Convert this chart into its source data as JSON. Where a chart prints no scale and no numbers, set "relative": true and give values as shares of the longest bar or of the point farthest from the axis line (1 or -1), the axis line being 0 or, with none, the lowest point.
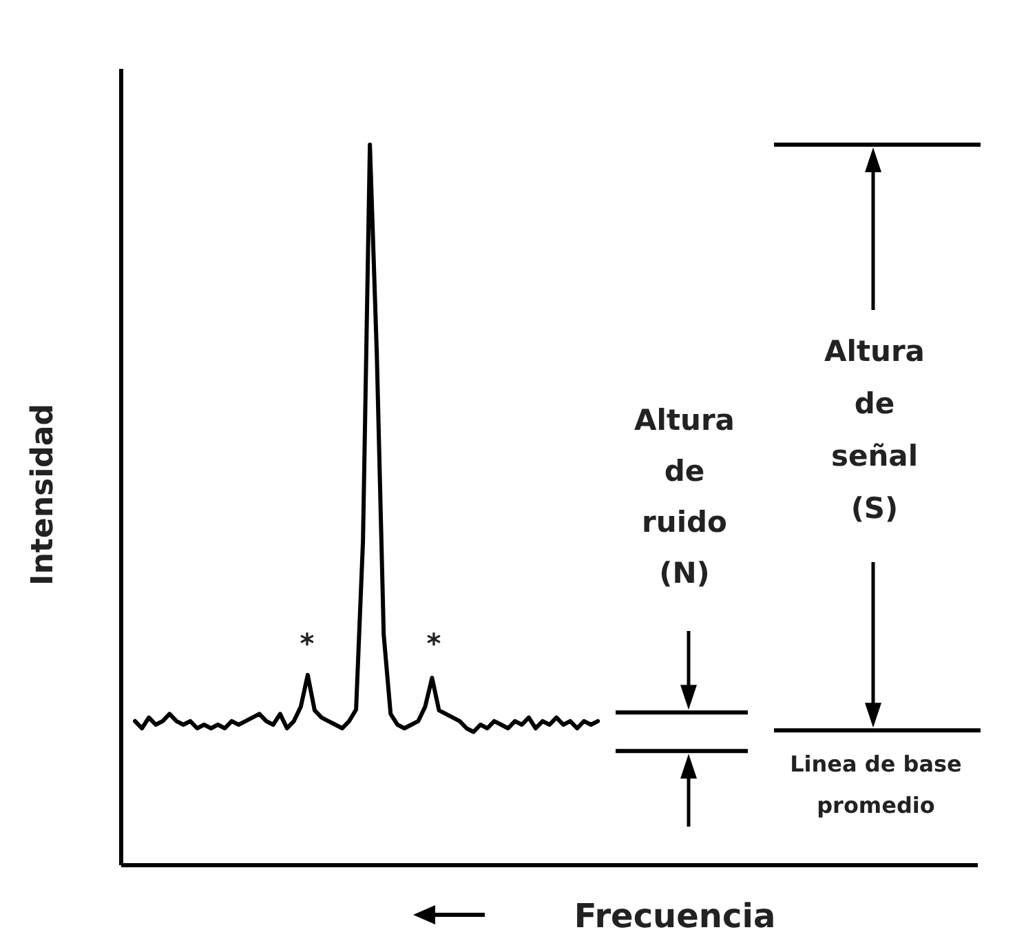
{
  "chart_data": {
    "type": "line",
    "relative": true,
    "xlabel": "Frecuencia",
    "ylabel": "Intensidad",
    "categories": [
      null,
      null,
      null,
      null,
      null,
      null,
      null,
      null,
      null,
      null,
      null,
      null,
      null,
      null,
      null,
      null,
      null,
      null,
      null,
      null,
      null,
      null,
      null,
      null,
      null,
      null,
      null,
      null,
      null,
      null,
      null,
      null,
      null,
      null,
      null,
      null,
      null,
      null,
      null,
      null,
      null,
      null,
      null,
      null,
      null,
      null,
      null,
      null,
      null,
      null,
      null,
      null,
      null,
      null,
      null,
      null,
      null,
      null,
      null,
      null,
      null,
      null,
      null,
      null,
      null,
      null,
      null,
      null,
      null,
      null,
      null,
      null,
      null,
      null,
      null,
      null,
      null,
      null,
      null,
      null,
      null,
      null,
      null,
      null,
      null,
      null,
      null,
      null,
      null,
      null,
      null,
      null,
      null,
      null,
      null,
      null,
      null,
      null,
      null,
      null,
      null,
      null,
      null,
      null,
      null,
      null,
      null,
      null,
      null,
      null,
      null,
      null,
      null,
      null,
      null,
      null,
      null,
      null,
      null,
      null,
      null,
      null,
      null,
      null,
      null
    ],
    "series": [
      {
        "color": "#000000",
        "values": [
          null,
          null,
          0.2,
          0.19,
          0.205,
          0.195,
          0.2,
          0.21,
          0.2,
          0.195,
          0.2,
          0.19,
          0.195,
          0.19,
          0.195,
          0.19,
          0.2,
          0.195,
          0.2,
          0.205,
          0.21,
          0.2,
          0.195,
          0.21,
          0.19,
          0.2,
          0.22,
          0.264,
          0.215,
          0.205,
          0.2,
          0.195,
          0.19,
          0.2,
          0.216,
          0.45,
          1,
          0.71,
          0.32,
          0.21,
          0.195,
          0.19,
          0.195,
          0.2,
          0.22,
          0.26,
          0.215,
          0.21,
          0.205,
          0.2,
          0.19,
          0.185,
          0.195,
          0.19,
          0.2,
          0.195,
          0.19,
          0.2,
          0.195,
          0.205,
          0.19,
          0.2,
          0.195,
          0.205,
          0.195,
          0.2,
          0.19,
          0.2,
          0.195,
          0.2,
          null,
          null,
          null,
          null,
          null,
          null,
          null,
          null,
          null,
          null,
          null,
          null,
          null,
          null,
          null,
          null,
          null,
          null,
          null,
          null,
          null,
          null,
          null,
          null,
          null,
          null,
          null,
          null,
          null,
          null,
          null,
          null,
          null,
          null,
          null,
          null,
          null,
          null,
          null,
          null,
          null,
          null,
          null,
          null,
          null,
          null,
          null,
          null,
          null,
          null,
          null,
          null,
          null,
          null,
          null
        ]
      }
    ],
    "annotations": [
      "*",
      "*",
      "Altura de ruido (N)",
      "Altura de señal (S)",
      "Linea de base promedio"
    ]
  }
}
